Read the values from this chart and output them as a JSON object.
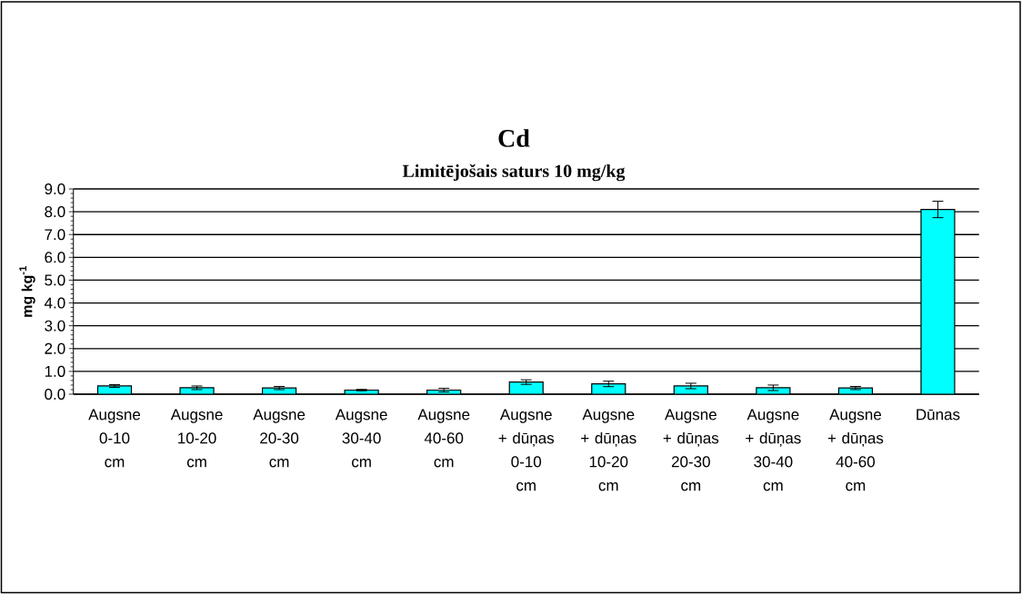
{
  "chart_data": {
    "type": "bar",
    "title": "Cd",
    "subtitle": "Limitējošais saturs 10 mg/kg",
    "ylabel": "mg kg$^{-1}$",
    "categories": [
      "Augsne 0-10 cm",
      "Augsne 10-20 cm",
      "Augsne 20-30 cm",
      "Augsne 30-40 cm",
      "Augsne 40-60 cm",
      "Augsne + dūņas 0-10 cm",
      "Augsne + dūņas 10-20 cm",
      "Augsne + dūņas 20-30 cm",
      "Augsne + dūņas 30-40 cm",
      "Augsne + dūņas 40-60 cm",
      "Dūnas"
    ],
    "values": [
      0.36,
      0.28,
      0.27,
      0.18,
      0.18,
      0.53,
      0.45,
      0.36,
      0.28,
      0.27,
      8.1
    ],
    "errors": [
      0.06,
      0.08,
      0.07,
      0.03,
      0.08,
      0.1,
      0.12,
      0.12,
      0.12,
      0.07,
      0.36
    ],
    "color": "#00ffff",
    "ylim": [
      0,
      9
    ],
    "yticks": [
      {
        "value": 0,
        "label": "0.0"
      },
      {
        "value": 1,
        "label": "1.0"
      },
      {
        "value": 2,
        "label": "2.0"
      },
      {
        "value": 3,
        "label": "3.0"
      },
      {
        "value": 4,
        "label": "4.0"
      },
      {
        "value": 5,
        "label": "5.0"
      },
      {
        "value": 6,
        "label": "6.0"
      },
      {
        "value": 7,
        "label": "7.0"
      },
      {
        "value": 8,
        "label": "8.0"
      },
      {
        "value": 9,
        "label": "9.0"
      }
    ],
    "grid": "y"
  }
}
